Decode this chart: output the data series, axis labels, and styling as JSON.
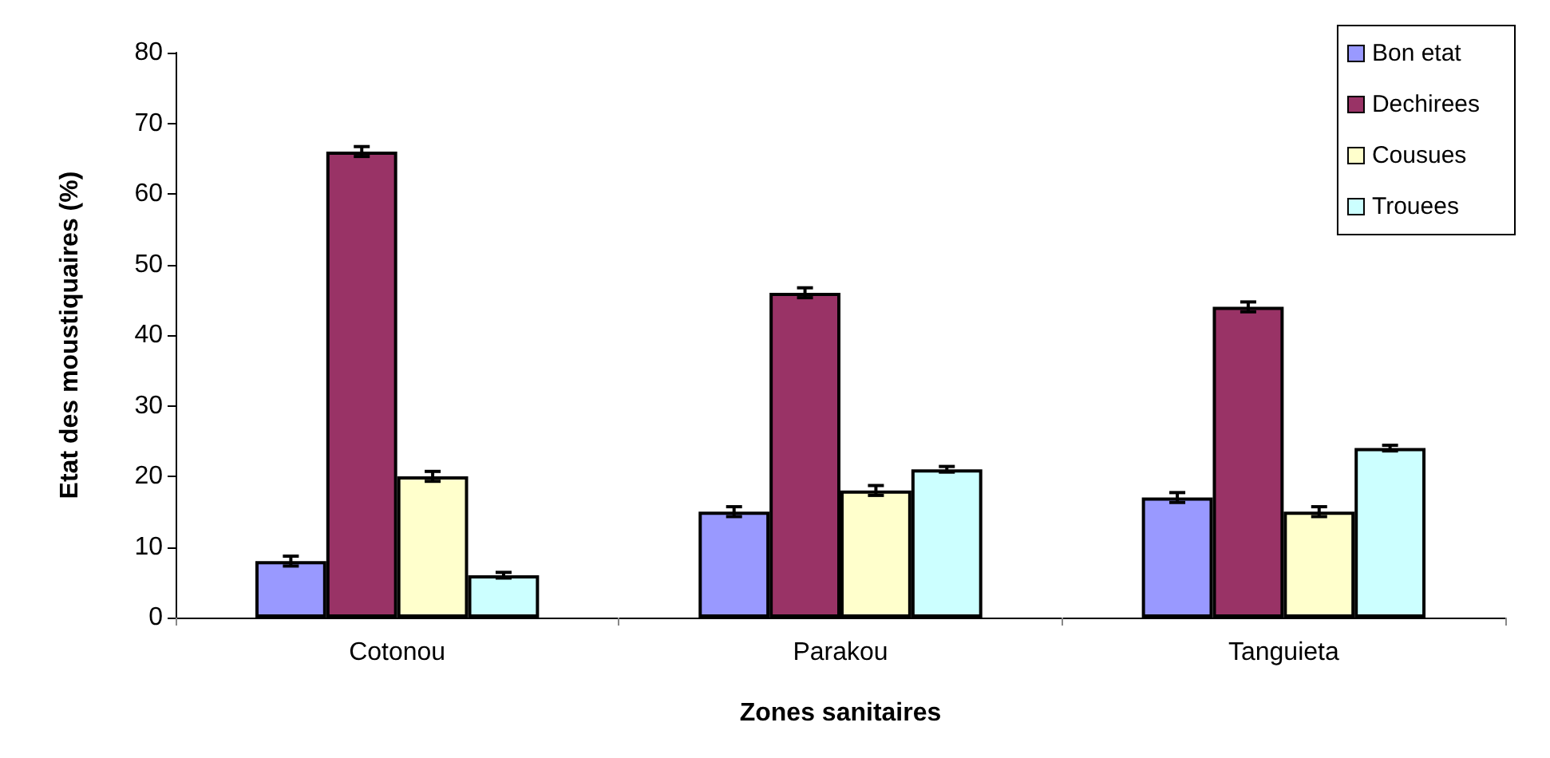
{
  "chart_data": {
    "type": "bar",
    "xlabel": "Zones sanitaires",
    "ylabel": "Etat des moustiquaires (%)",
    "categories": [
      "Cotonou",
      "Parakou",
      "Tanguieta"
    ],
    "series": [
      {
        "name": "Bon etat",
        "color": "#9999ff",
        "values": [
          8,
          15,
          17
        ],
        "errors": [
          0.7,
          0.7,
          0.7
        ]
      },
      {
        "name": "Dechirees",
        "color": "#993366",
        "values": [
          66,
          46,
          44
        ],
        "errors": [
          0.7,
          0.7,
          0.7
        ]
      },
      {
        "name": "Cousues",
        "color": "#ffffcc",
        "values": [
          20,
          18,
          15
        ],
        "errors": [
          0.7,
          0.7,
          0.7
        ]
      },
      {
        "name": "Trouees",
        "color": "#ccffff",
        "values": [
          6,
          21,
          24
        ],
        "errors": [
          0.4,
          0.4,
          0.4
        ]
      }
    ],
    "ylim": [
      0,
      80
    ],
    "yticks": [
      0,
      10,
      20,
      30,
      40,
      50,
      60,
      70,
      80
    ],
    "grid": false,
    "legend": "top right"
  }
}
